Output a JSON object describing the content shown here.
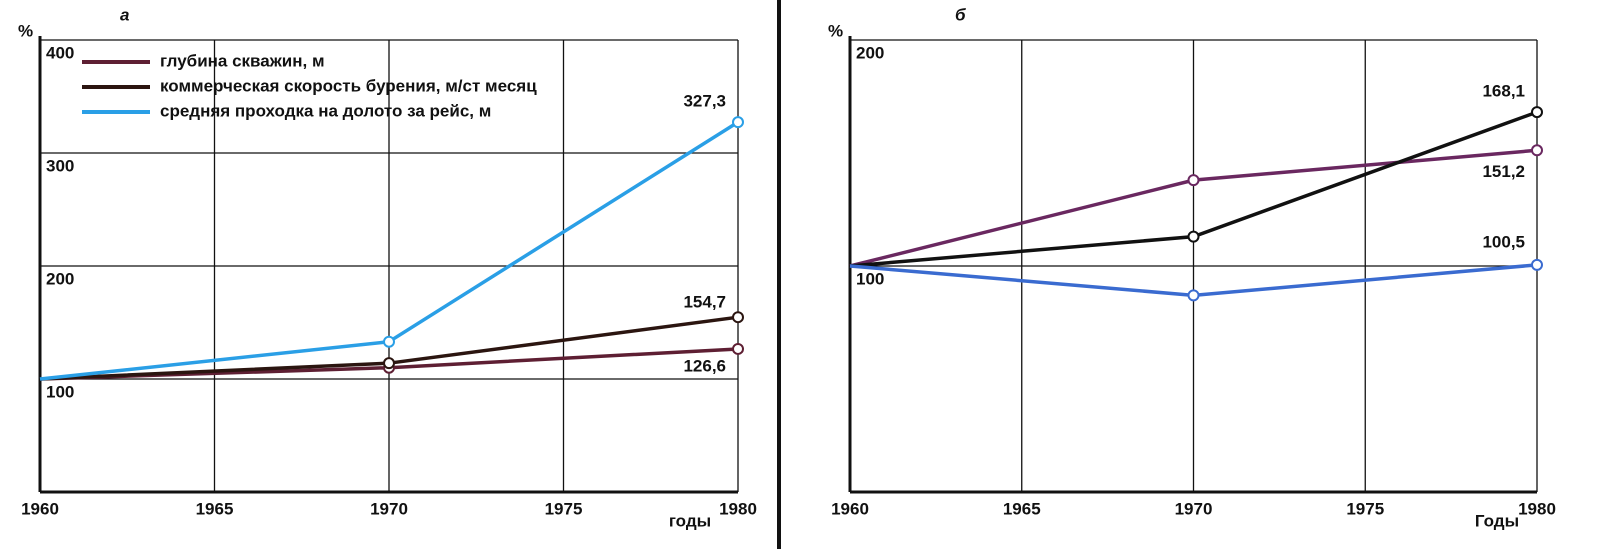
{
  "chart_data": [
    {
      "type": "line",
      "title": "а",
      "ylabel": "%",
      "xlabel": "годы",
      "x": [
        1960,
        1970,
        1980
      ],
      "xlim": [
        1960,
        1980
      ],
      "xticks": [
        1960,
        1965,
        1970,
        1975,
        1980
      ],
      "ylim": [
        0,
        400
      ],
      "yticks": [
        100,
        200,
        300,
        400
      ],
      "grid": true,
      "legend": "upper left",
      "series": [
        {
          "name": "глубина скважин, м",
          "color": "#5e1f33",
          "values": [
            100,
            110,
            126.6
          ],
          "value_labels": [
            null,
            null,
            "126,6"
          ]
        },
        {
          "name": "коммерческая скорость бурения, м/ст месяц",
          "color": "#2b1510",
          "values": [
            100,
            114,
            154.7
          ],
          "value_labels": [
            null,
            null,
            "154,7"
          ]
        },
        {
          "name": "средняя проходка на долото за рейс, м",
          "color": "#2a9fe6",
          "values": [
            100,
            133,
            327.3
          ],
          "value_labels": [
            null,
            null,
            "327,3"
          ]
        }
      ]
    },
    {
      "type": "line",
      "title": "б",
      "ylabel": "%",
      "xlabel": "Годы",
      "x": [
        1960,
        1970,
        1980
      ],
      "xlim": [
        1960,
        1980
      ],
      "xticks": [
        1960,
        1965,
        1970,
        1975,
        1980
      ],
      "ylim": [
        0,
        200
      ],
      "yticks": [
        100,
        200
      ],
      "grid": true,
      "series": [
        {
          "color": "#6a2860",
          "values": [
            100,
            138,
            151.2
          ],
          "value_labels": [
            null,
            null,
            "151,2"
          ]
        },
        {
          "color": "#111111",
          "values": [
            100,
            113,
            168.1
          ],
          "value_labels": [
            null,
            null,
            "168,1"
          ]
        },
        {
          "color": "#3a6bd0",
          "values": [
            100,
            87,
            100.5
          ],
          "value_labels": [
            null,
            null,
            "100,5"
          ]
        }
      ]
    }
  ]
}
